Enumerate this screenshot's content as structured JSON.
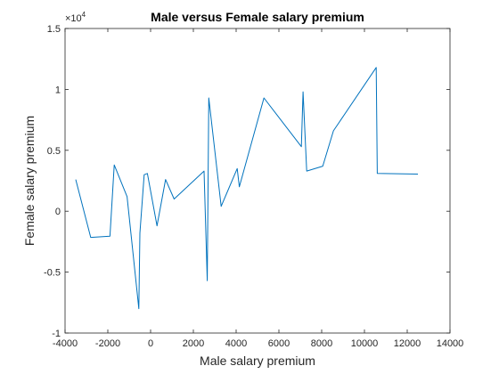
{
  "chart_data": {
    "type": "line",
    "title": "Male versus Female salary premium",
    "xlabel": "Male salary premium",
    "ylabel": "Female salary premium",
    "xlim": [
      -4000,
      14000
    ],
    "ylim": [
      -10000,
      15000
    ],
    "x_ticks": [
      -4000,
      -2000,
      0,
      2000,
      4000,
      6000,
      8000,
      10000,
      12000,
      14000
    ],
    "x_tick_labels": [
      "-4000",
      "-2000",
      "0",
      "2000",
      "4000",
      "6000",
      "8000",
      "10000",
      "12000",
      "14000"
    ],
    "y_ticks": [
      -10000,
      -5000,
      0,
      5000,
      10000,
      15000
    ],
    "y_tick_labels": [
      "-1",
      "-0.5",
      "0",
      "0.5",
      "1",
      "1.5"
    ],
    "y_exponent_base": "×10",
    "y_exponent_power": "4",
    "grid": false,
    "series": [
      {
        "color": "#0072bd",
        "x": [
          -3500,
          -2800,
          -1900,
          -1700,
          -1100,
          -550,
          -500,
          -300,
          -150,
          300,
          700,
          1100,
          2500,
          2650,
          2720,
          3300,
          4050,
          4150,
          5300,
          7050,
          7130,
          7300,
          8050,
          8550,
          10550,
          10600,
          12500
        ],
        "y": [
          2600,
          -2150,
          -2050,
          3800,
          1200,
          -8000,
          -1800,
          3000,
          3100,
          -1200,
          2600,
          1000,
          3300,
          -5700,
          9300,
          400,
          3500,
          2000,
          9300,
          5300,
          9800,
          3300,
          3700,
          6600,
          11800,
          3100,
          3050
        ]
      }
    ]
  }
}
